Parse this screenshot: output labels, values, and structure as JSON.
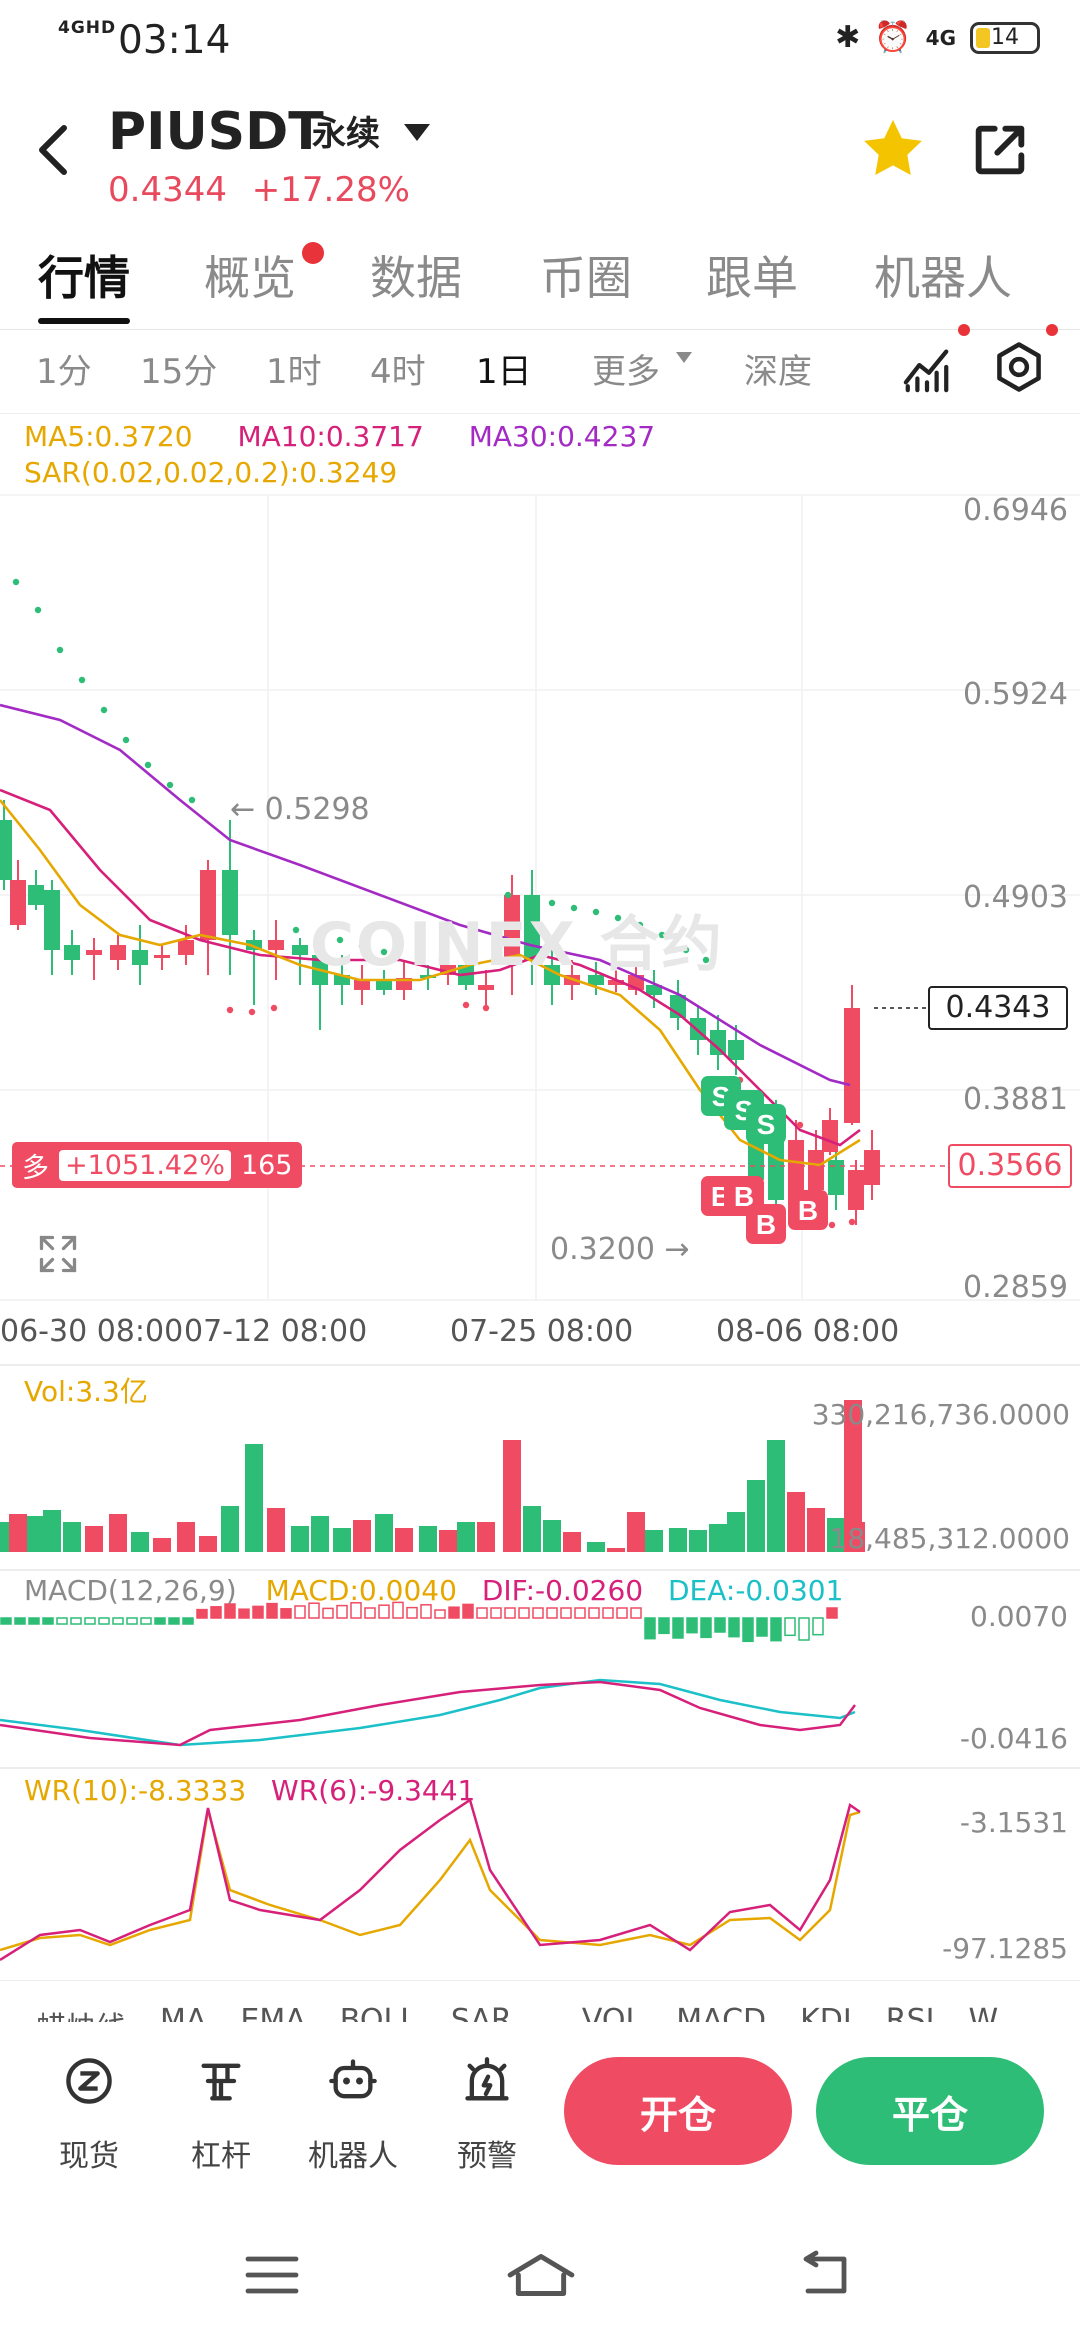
{
  "status_bar": {
    "network": "4GHD",
    "time": "03:14",
    "signal_right": "4G",
    "battery": "14"
  },
  "header": {
    "symbol": "PIUSDT",
    "contract_type": "永续",
    "price": "0.4344",
    "change": "+17.28%"
  },
  "tabs": [
    "行情",
    "概览",
    "数据",
    "币圈",
    "跟单",
    "机器人"
  ],
  "intervals": [
    "1分",
    "15分",
    "1时",
    "4时",
    "1日",
    "更多",
    "深度"
  ],
  "indicators": {
    "ma5": "MA5:0.3720",
    "ma10": "MA10:0.3717",
    "ma30": "MA30:0.4237",
    "sar": "SAR(0.02,0.02,0.2):0.3249",
    "vol": "Vol:3.3亿",
    "macd_title": "MACD(12,26,9)",
    "macd": "MACD:0.0040",
    "dif": "DIF:-0.0260",
    "dea": "DEA:-0.0301",
    "wr10": "WR(10):-8.3333",
    "wr6": "WR(6):-9.3441"
  },
  "chart_data": {
    "type": "candlestick",
    "y_axis_labels": [
      "0.6946",
      "0.5924",
      "0.4903",
      "0.3881",
      "0.2859"
    ],
    "x_axis_labels": [
      "06-30 08:00",
      "07-12 08:00",
      "07-25 08:00",
      "08-06 08:00"
    ],
    "current_price_tag": "0.4343",
    "position_price_tag": "0.3566",
    "high_marker": "← 0.5298",
    "low_marker": "0.3200 →",
    "watermark": "COINEX 合约",
    "volume_axis": [
      "330,216,736.0000",
      "18,485,312.0000"
    ],
    "macd_axis": [
      "0.0070",
      "-0.0416"
    ],
    "wr_axis": [
      "-3.1531",
      "-97.1285"
    ],
    "trade_markers": [
      "S",
      "S",
      "S",
      "B",
      "B",
      "B",
      "B"
    ]
  },
  "position": {
    "side": "多",
    "pnl": "+1051.42%",
    "leverage": "165"
  },
  "indicator_tabs": [
    "蜡烛线",
    "MA",
    "EMA",
    "BOLL",
    "SAR",
    "VOL",
    "MACD",
    "KDJ",
    "RSI",
    "W"
  ],
  "bottom_nav": [
    {
      "label": "现货"
    },
    {
      "label": "杠杆"
    },
    {
      "label": "机器人"
    },
    {
      "label": "预警"
    }
  ],
  "actions": {
    "open": "开仓",
    "close": "平仓"
  },
  "colors": {
    "up": "#ef4b63",
    "down": "#2dbd76",
    "accent": "#f5c400"
  }
}
